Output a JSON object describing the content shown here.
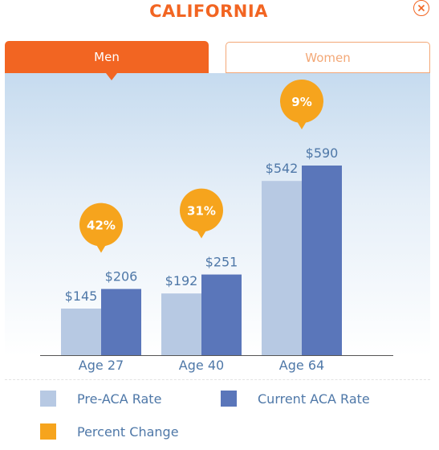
{
  "header": {
    "title": "CALIFORNIA"
  },
  "tabs": [
    {
      "label": "Men",
      "active": true
    },
    {
      "label": "Women",
      "active": false
    }
  ],
  "colors": {
    "accent": "#f26522",
    "pre": "#b7c9e3",
    "current": "#5a76ba",
    "change": "#f6a41d"
  },
  "legend": [
    {
      "label": "Pre-ACA Rate",
      "color": "#b7c9e3"
    },
    {
      "label": "Current ACA Rate",
      "color": "#5a76ba"
    },
    {
      "label": "Percent Change",
      "color": "#f6a41d"
    }
  ],
  "chart_data": {
    "type": "bar",
    "categories": [
      "Age 27",
      "Age 40",
      "Age 64"
    ],
    "series": [
      {
        "name": "Pre-ACA Rate",
        "values": [
          145,
          192,
          542
        ],
        "labels": [
          "$145",
          "$192",
          "$542"
        ]
      },
      {
        "name": "Current ACA Rate",
        "values": [
          206,
          251,
          590
        ],
        "labels": [
          "$206",
          "$251",
          "$590"
        ]
      }
    ],
    "percent_change": [
      "42%",
      "31%",
      "9%"
    ],
    "ylim": [
      0,
      700
    ],
    "grid": false,
    "legend_position": "bottom"
  }
}
